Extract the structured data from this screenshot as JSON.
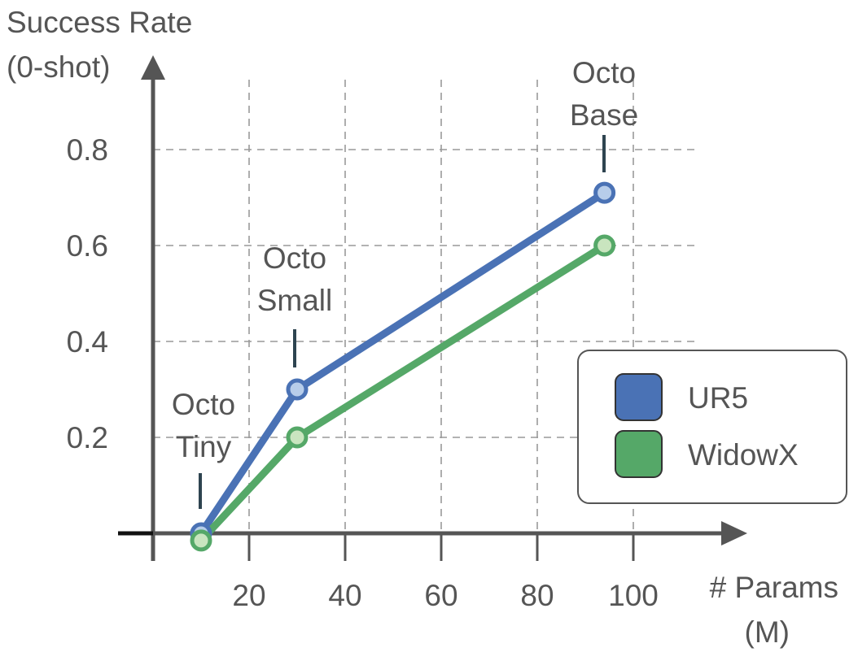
{
  "chart_data": {
    "type": "line",
    "ylabel_lines": [
      "Success Rate",
      "(0-shot)"
    ],
    "xlabel_lines": [
      "# Params",
      "(M)"
    ],
    "x_ticks": [
      20,
      40,
      60,
      80,
      100
    ],
    "y_ticks": [
      0.2,
      0.4,
      0.6,
      0.8
    ],
    "x_tick_labels": [
      "20",
      "40",
      "60",
      "80",
      "100"
    ],
    "y_tick_labels": [
      "0.2",
      "0.4",
      "0.6",
      "0.8"
    ],
    "xlim": [
      0,
      115
    ],
    "ylim": [
      0,
      0.92
    ],
    "grid": true,
    "legend_position": "right",
    "series": [
      {
        "name": "UR5",
        "color": "#4a72b5",
        "marker_fill": "#b7cdea",
        "x": [
          10,
          30,
          94
        ],
        "y": [
          0.0,
          0.3,
          0.71
        ]
      },
      {
        "name": "WidowX",
        "color": "#55a868",
        "marker_fill": "#c9e5bf",
        "x": [
          10,
          30,
          94
        ],
        "y": [
          -0.015,
          0.2,
          0.6
        ]
      }
    ],
    "annotations": [
      {
        "lines": [
          "Octo",
          "Tiny"
        ],
        "x": 10
      },
      {
        "lines": [
          "Octo",
          "Small"
        ],
        "x": 30
      },
      {
        "lines": [
          "Octo",
          "Base"
        ],
        "x": 94
      }
    ]
  }
}
